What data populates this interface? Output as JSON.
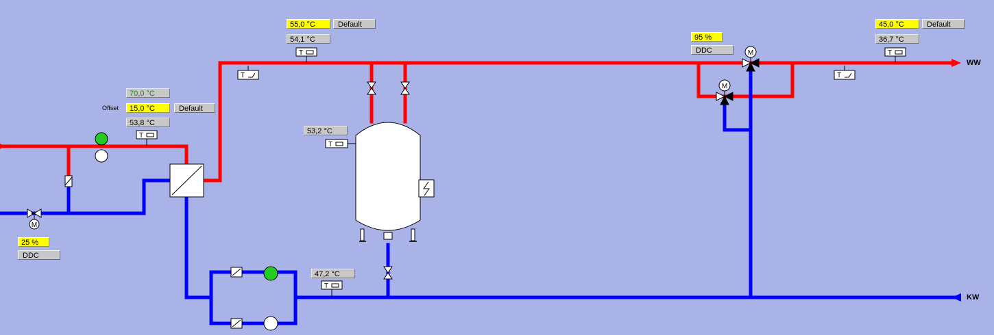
{
  "labels": {
    "ww": "WW",
    "kw": "KW",
    "offset": "Offset"
  },
  "primary": {
    "actual_supply": "70,0  °C",
    "offset_value": "15,0  °C",
    "offset_mode": "Default",
    "secondary_temp": "53,8  °C"
  },
  "primary_valve": {
    "position": "25  %",
    "mode": "DDC"
  },
  "storage_supply": {
    "setpoint": "55,0  °C",
    "setpoint_mode": "Default",
    "actual": "54,1  °C"
  },
  "tank": {
    "temperature": "53,2  °C"
  },
  "return_line": {
    "temperature": "47,2  °C"
  },
  "mix_valve": {
    "position": "95  %",
    "mode": "DDC"
  },
  "hot_water": {
    "setpoint": "45,0  °C",
    "setpoint_mode": "Default",
    "actual": "36,7  °C"
  },
  "sensor_letter": "T",
  "motor_letter": "M",
  "colors": {
    "hot": "#ff0000",
    "cold": "#0000ff",
    "background": "#aab3e8",
    "pump_on": "#22cc22",
    "setpoint": "#ffff00"
  }
}
